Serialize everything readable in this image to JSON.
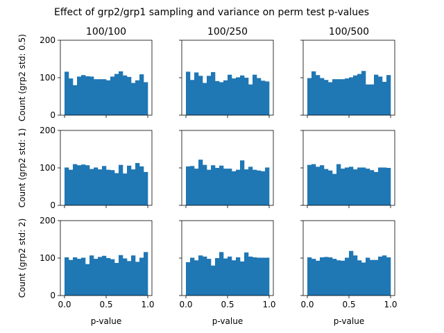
{
  "chart_data": {
    "type": "bar",
    "suptitle": "Effect of grp2/grp1 sampling and variance on perm test p-values",
    "column_titles": [
      "100/100",
      "100/250",
      "100/500"
    ],
    "row_ylabels": [
      "Count (grp2 std: 0.5)",
      "Count (grp2 std: 1)",
      "Count (grp2 std: 2)"
    ],
    "xlabel": "p-value",
    "xlim": [
      -0.05,
      1.05
    ],
    "ylim": [
      0,
      200
    ],
    "xticks": [
      0.0,
      0.5,
      1.0
    ],
    "xtick_labels": [
      "0.0",
      "0.5",
      "1.0"
    ],
    "yticks": [
      0,
      100,
      200
    ],
    "ytick_labels": [
      "0",
      "100",
      "200"
    ],
    "bar_color": "#1f77b4",
    "bins": 20,
    "bin_range": [
      0,
      1
    ],
    "panels": [
      {
        "row": 0,
        "col": 0,
        "values": [
          116,
          98,
          80,
          103,
          107,
          104,
          103,
          96,
          96,
          96,
          93,
          103,
          110,
          117,
          106,
          102,
          86,
          93,
          109,
          88
        ]
      },
      {
        "row": 0,
        "col": 1,
        "values": [
          116,
          94,
          114,
          105,
          86,
          105,
          115,
          91,
          88,
          93,
          108,
          98,
          101,
          106,
          100,
          82,
          108,
          99,
          92,
          90
        ]
      },
      {
        "row": 0,
        "col": 2,
        "values": [
          99,
          117,
          107,
          99,
          94,
          88,
          96,
          96,
          96,
          98,
          101,
          106,
          110,
          118,
          82,
          82,
          108,
          103,
          89,
          107
        ]
      },
      {
        "row": 1,
        "col": 0,
        "values": [
          101,
          95,
          110,
          107,
          109,
          107,
          97,
          101,
          96,
          105,
          95,
          94,
          86,
          108,
          85,
          106,
          96,
          113,
          104,
          89
        ]
      },
      {
        "row": 1,
        "col": 1,
        "values": [
          104,
          105,
          98,
          122,
          108,
          95,
          107,
          100,
          106,
          98,
          98,
          91,
          95,
          120,
          96,
          103,
          95,
          93,
          91,
          101
        ]
      },
      {
        "row": 1,
        "col": 2,
        "values": [
          108,
          110,
          103,
          107,
          97,
          93,
          84,
          110,
          98,
          101,
          103,
          96,
          101,
          101,
          98,
          94,
          89,
          101,
          101,
          100
        ]
      },
      {
        "row": 2,
        "col": 0,
        "values": [
          102,
          95,
          102,
          98,
          101,
          84,
          107,
          98,
          103,
          106,
          100,
          97,
          87,
          108,
          99,
          92,
          107,
          90,
          101,
          116
        ]
      },
      {
        "row": 2,
        "col": 1,
        "values": [
          89,
          101,
          94,
          107,
          104,
          98,
          80,
          100,
          116,
          99,
          104,
          94,
          102,
          91,
          115,
          104,
          102,
          101,
          101,
          101
        ]
      },
      {
        "row": 2,
        "col": 2,
        "values": [
          102,
          98,
          93,
          102,
          103,
          102,
          98,
          94,
          93,
          101,
          119,
          107,
          94,
          88,
          101,
          95,
          95,
          104,
          107,
          102
        ]
      }
    ]
  }
}
